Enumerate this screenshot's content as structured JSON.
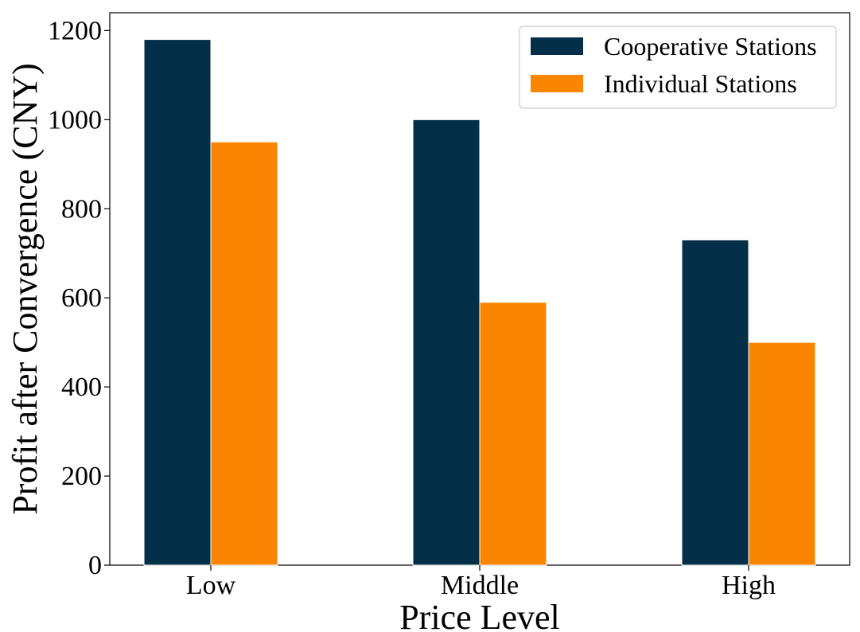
{
  "chart_data": {
    "type": "bar",
    "categories": [
      "Low",
      "Middle",
      "High"
    ],
    "series": [
      {
        "name": "Cooperative Stations",
        "values": [
          1180,
          1000,
          730
        ],
        "color": "#033048"
      },
      {
        "name": "Individual Stations",
        "values": [
          950,
          590,
          500
        ],
        "color": "#fa8501"
      }
    ],
    "xlabel": "Price Level",
    "ylabel": "Profit after Convergence (CNY)",
    "ylim": [
      0,
      1240
    ],
    "yticks": [
      0,
      200,
      400,
      600,
      800,
      1000,
      1200
    ],
    "grid": false,
    "legend_position": "top-right"
  }
}
